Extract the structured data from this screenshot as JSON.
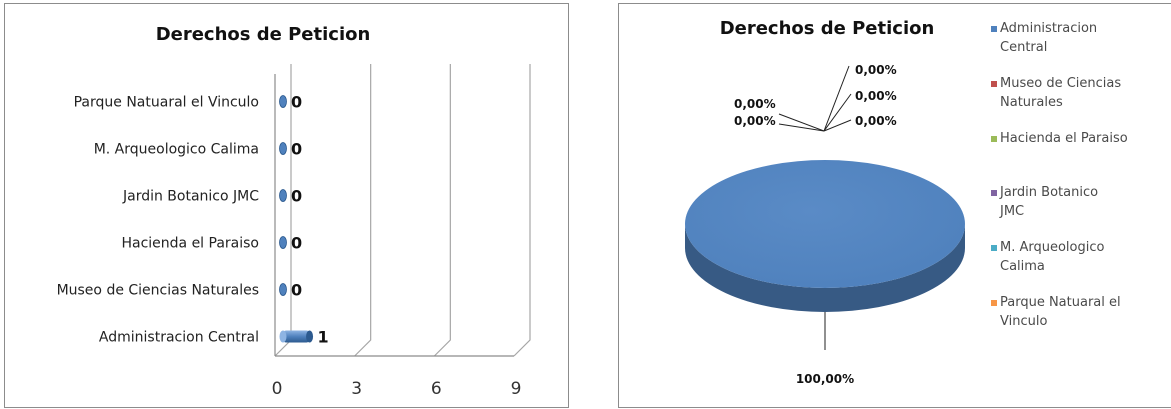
{
  "chart_data": [
    {
      "type": "bar",
      "orientation": "horizontal",
      "title": "Derechos de Peticion",
      "categories": [
        "Administracion Central",
        "Museo de Ciencias Naturales",
        "Hacienda el Paraiso",
        "Jardin Botanico JMC",
        "M. Arqueologico Calima",
        "Parque Natuaral el Vinculo"
      ],
      "values": [
        1,
        0,
        0,
        0,
        0,
        0
      ],
      "data_labels": [
        "1",
        "0",
        "0",
        "0",
        "0",
        "0"
      ],
      "xlim": [
        0,
        9
      ],
      "ticks": [
        "0",
        "3",
        "6",
        "9"
      ],
      "grid": true,
      "color": "#4f81bd"
    },
    {
      "type": "pie",
      "title": "Derechos de Peticion",
      "categories": [
        "Administracion Central",
        "Museo de Ciencias Naturales",
        "Hacienda el Paraiso",
        "Jardin Botanico JMC",
        "M. Arqueologico Calima",
        "Parque Natuaral el Vinculo"
      ],
      "legend_lines": [
        [
          "Administracion",
          "Central"
        ],
        [
          "Museo de Ciencias",
          "Naturales"
        ],
        [
          "Hacienda el Paraiso"
        ],
        [
          "Jardin Botanico",
          "JMC"
        ],
        [
          "M. Arqueologico",
          "Calima"
        ],
        [
          "Parque Natuaral el",
          "Vinculo"
        ]
      ],
      "values": [
        100,
        0,
        0,
        0,
        0,
        0
      ],
      "data_labels": [
        "100,00%",
        "0,00%",
        "0,00%",
        "0,00%",
        "0,00%",
        "0,00%"
      ],
      "colors": [
        "#4f81bd",
        "#c0504d",
        "#9bbb59",
        "#8064a2",
        "#4bacc6",
        "#f79646"
      ],
      "legend_position": "right"
    }
  ]
}
